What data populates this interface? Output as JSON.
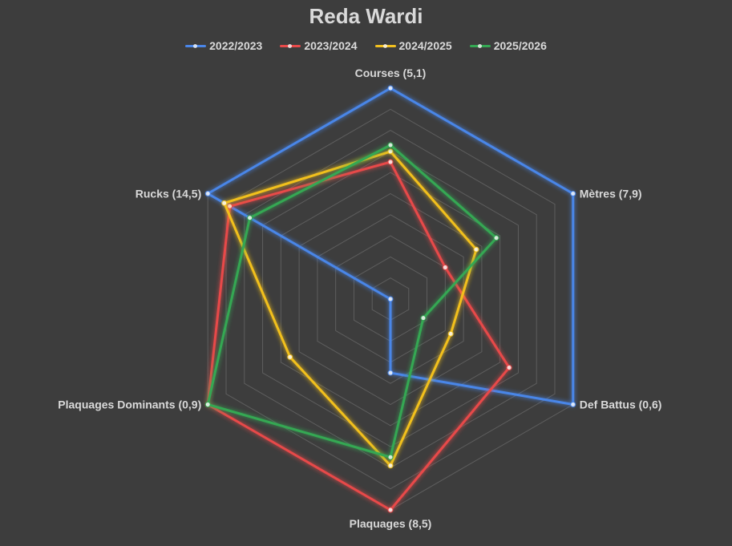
{
  "chart_data": {
    "type": "radar",
    "title": "Reda Wardi",
    "axes": [
      "Courses (5,1)",
      "Mètres (7,9)",
      "Def Battus (0,6)",
      "Plaquages (8,5)",
      "Plaquages Dominants (0,9)",
      "Rucks (14,5)"
    ],
    "rmax": 10,
    "grid_levels": 10,
    "grid": true,
    "legend_position": "top",
    "series": [
      {
        "name": "2022/2023",
        "color": "#4a86e8",
        "values": [
          10.0,
          10.0,
          10.0,
          3.5,
          0.0,
          10.0
        ]
      },
      {
        "name": "2023/2024",
        "color": "#e84a4a",
        "values": [
          6.5,
          3.0,
          6.5,
          10.0,
          10.0,
          8.8
        ]
      },
      {
        "name": "2024/2025",
        "color": "#f2c01f",
        "values": [
          7.0,
          4.7,
          3.3,
          7.9,
          5.5,
          9.1
        ]
      },
      {
        "name": "2025/2026",
        "color": "#34a853",
        "values": [
          7.3,
          5.8,
          1.8,
          7.5,
          10.0,
          7.7
        ]
      }
    ]
  }
}
